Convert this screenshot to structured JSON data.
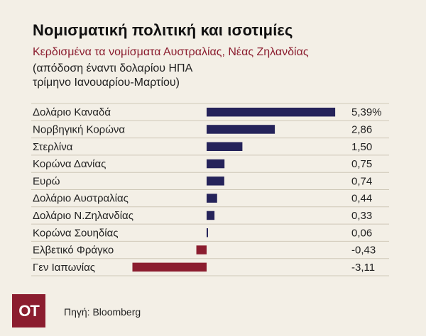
{
  "header": {
    "title": "Νομισματική πολιτική και ισοτιμίες",
    "subtitle": "Κερδισμένα τα νομίσματα Αυστραλίας, Νέας Ζηλανδίας",
    "note_line1": "(απόδοση έναντι δολαρίου ΗΠΑ",
    "note_line2": "τρίμηνο Ιανουαρίου-Μαρτίου)"
  },
  "logo": {
    "text": "ΟΤ"
  },
  "source": "Πηγή: Bloomberg",
  "colors": {
    "positive": "#25235a",
    "negative": "#8b1d2f",
    "background": "#f3efe6"
  },
  "chart_data": {
    "type": "bar",
    "orientation": "horizontal",
    "categories": [
      "Δολάριο Καναδά",
      "Νορβηγική Κορώνα",
      "Στερλίνα",
      "Κορώνα Δανίας",
      "Ευρώ",
      "Δολάριο Αυστραλίας",
      "Δολάριο Ν.Ζηλανδίας",
      "Κορώνα Σουηδίας",
      "Ελβετικό Φράγκο",
      "Γεν Ιαπωνίας"
    ],
    "values": [
      5.39,
      2.86,
      1.5,
      0.75,
      0.74,
      0.44,
      0.33,
      0.06,
      -0.43,
      -3.11
    ],
    "value_labels": [
      "5,39%",
      "2,86",
      "1,50",
      "0,75",
      "0,74",
      "0,44",
      "0,33",
      "0,06",
      "-0,43",
      "-3,11"
    ],
    "title": "",
    "xlabel": "",
    "ylabel": "",
    "grid": false,
    "legend": "none"
  }
}
